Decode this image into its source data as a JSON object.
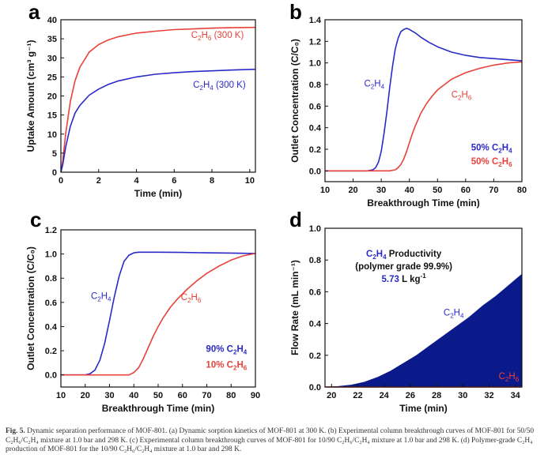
{
  "chart_data": [
    {
      "id": "a",
      "panel_label": "a",
      "type": "line",
      "xlabel": "Time (min)",
      "ylabel": "Uptake Amount (cm³ g⁻¹)",
      "xlim": [
        0,
        10.3
      ],
      "ylim": [
        0,
        40
      ],
      "xticks": [
        0,
        2,
        4,
        6,
        8,
        10
      ],
      "yticks": [
        0,
        5,
        10,
        15,
        20,
        25,
        30,
        35,
        40
      ],
      "series": [
        {
          "name": "C2H6 (300 K)",
          "color": "#e8413a",
          "x": [
            0,
            0.1,
            0.25,
            0.5,
            0.75,
            1.0,
            1.5,
            2,
            2.5,
            3,
            4,
            5,
            6,
            7,
            8,
            9,
            10.3
          ],
          "y": [
            0,
            3,
            10,
            18.5,
            24,
            27.5,
            31.5,
            33.5,
            34.7,
            35.5,
            36.5,
            37.0,
            37.4,
            37.6,
            37.8,
            37.9,
            38.0
          ]
        },
        {
          "name": "C2H4 (300 K)",
          "color": "#2a2ac8",
          "x": [
            0,
            0.1,
            0.25,
            0.5,
            0.75,
            1.0,
            1.5,
            2,
            2.5,
            3,
            4,
            5,
            6,
            7,
            8,
            9,
            10.3
          ],
          "y": [
            0,
            2,
            6.5,
            12,
            15.5,
            17.5,
            20.2,
            21.8,
            23.0,
            23.9,
            25.0,
            25.7,
            26.1,
            26.4,
            26.6,
            26.8,
            27.0
          ]
        }
      ],
      "labels": [
        {
          "series": 0,
          "main": "C",
          "sub": "2",
          "mid": "H",
          "sub2": "6",
          "tail": " (300 K)",
          "at": [
            6.9,
            35.2
          ],
          "anchor": "start"
        },
        {
          "series": 1,
          "main": "C",
          "sub": "2",
          "mid": "H",
          "sub2": "4",
          "tail": " (300 K)",
          "at": [
            7.0,
            22.2
          ],
          "anchor": "start"
        }
      ]
    },
    {
      "id": "b",
      "panel_label": "b",
      "type": "line",
      "xlabel": "Breakthrough Time (min)",
      "ylabel": "Outlet Concentration (C/C₀)",
      "xlim": [
        10,
        80
      ],
      "ylim": [
        -0.1,
        1.4
      ],
      "xticks": [
        10,
        20,
        30,
        40,
        50,
        60,
        70,
        80
      ],
      "yticks": [
        0.0,
        0.2,
        0.4,
        0.6,
        0.8,
        1.0,
        1.2,
        1.4
      ],
      "series": [
        {
          "name": "C2H4",
          "color": "#2a2ac8",
          "x": [
            10,
            25,
            27,
            28,
            29,
            30,
            31,
            32,
            33,
            34,
            35,
            36,
            37,
            38,
            39,
            40,
            42,
            44,
            47,
            50,
            55,
            60,
            65,
            70,
            75,
            80
          ],
          "y": [
            0,
            0,
            0.01,
            0.03,
            0.08,
            0.18,
            0.35,
            0.55,
            0.77,
            0.97,
            1.13,
            1.23,
            1.29,
            1.31,
            1.32,
            1.31,
            1.28,
            1.24,
            1.19,
            1.15,
            1.1,
            1.07,
            1.05,
            1.04,
            1.03,
            1.02
          ]
        },
        {
          "name": "C2H6",
          "color": "#e8413a",
          "x": [
            10,
            33,
            35,
            36,
            37,
            38,
            39,
            40,
            41,
            42,
            44,
            46,
            48,
            50,
            55,
            60,
            65,
            70,
            75,
            80
          ],
          "y": [
            0,
            0,
            0.01,
            0.03,
            0.06,
            0.11,
            0.18,
            0.26,
            0.34,
            0.41,
            0.53,
            0.62,
            0.69,
            0.75,
            0.85,
            0.91,
            0.95,
            0.98,
            1.0,
            1.01
          ]
        }
      ],
      "labels": [
        {
          "series": 0,
          "main": "C",
          "sub": "2",
          "mid": "H",
          "sub2": "4",
          "tail": "",
          "at": [
            27.5,
            0.78
          ],
          "anchor": "middle"
        },
        {
          "series": 1,
          "main": "C",
          "sub": "2",
          "mid": "H",
          "sub2": "6",
          "tail": "",
          "at": [
            58.5,
            0.68
          ],
          "anchor": "middle"
        },
        {
          "series": 0,
          "main": "50% C",
          "sub": "2",
          "mid": "H",
          "sub2": "4",
          "tail": "",
          "at": [
            76.5,
            0.19
          ],
          "anchor": "end"
        },
        {
          "series": 1,
          "main": "50% C",
          "sub": "2",
          "mid": "H",
          "sub2": "6",
          "tail": "",
          "at": [
            76.5,
            0.06
          ],
          "anchor": "end"
        }
      ]
    },
    {
      "id": "c",
      "panel_label": "c",
      "type": "line",
      "xlabel": "Breakthrough Time (min)",
      "ylabel": "Outlet Concentration (C/C₀)",
      "xlim": [
        10,
        90
      ],
      "ylim": [
        -0.1,
        1.2
      ],
      "xticks": [
        10,
        20,
        30,
        40,
        50,
        60,
        70,
        80,
        90
      ],
      "yticks": [
        0.0,
        0.2,
        0.4,
        0.6,
        0.8,
        1.0,
        1.2
      ],
      "series": [
        {
          "name": "C2H4",
          "color": "#2a2ac8",
          "x": [
            10,
            20,
            22,
            24,
            26,
            28,
            30,
            32,
            34,
            36,
            38,
            40,
            42,
            45,
            50,
            60,
            70,
            80,
            90
          ],
          "y": [
            0,
            0,
            0.01,
            0.04,
            0.12,
            0.26,
            0.45,
            0.65,
            0.82,
            0.94,
            0.99,
            1.01,
            1.015,
            1.015,
            1.015,
            1.013,
            1.01,
            1.008,
            1.005
          ]
        },
        {
          "name": "C2H6",
          "color": "#e8413a",
          "x": [
            10,
            38,
            40,
            42,
            44,
            46,
            48,
            50,
            52,
            55,
            58,
            62,
            66,
            70,
            75,
            80,
            85,
            90
          ],
          "y": [
            0,
            0,
            0.02,
            0.06,
            0.14,
            0.23,
            0.32,
            0.4,
            0.47,
            0.56,
            0.63,
            0.71,
            0.78,
            0.84,
            0.9,
            0.95,
            0.985,
            1.005
          ]
        }
      ],
      "labels": [
        {
          "series": 0,
          "main": "C",
          "sub": "2",
          "mid": "H",
          "sub2": "4",
          "tail": "",
          "at": [
            26.5,
            0.63
          ],
          "anchor": "middle"
        },
        {
          "series": 1,
          "main": "C",
          "sub": "2",
          "mid": "H",
          "sub2": "6",
          "tail": "",
          "at": [
            63.5,
            0.62
          ],
          "anchor": "middle"
        },
        {
          "series": 0,
          "main": "90% C",
          "sub": "2",
          "mid": "H",
          "sub2": "4",
          "tail": "",
          "at": [
            86.5,
            0.19
          ],
          "anchor": "end"
        },
        {
          "series": 1,
          "main": "10% C",
          "sub": "2",
          "mid": "H",
          "sub2": "6",
          "tail": "",
          "at": [
            86.5,
            0.06
          ],
          "anchor": "end"
        }
      ]
    },
    {
      "id": "d",
      "panel_label": "d",
      "type": "area",
      "xlabel": "Time (min)",
      "ylabel": "Flow Rate (mL min⁻¹)",
      "xlim": [
        19.5,
        34.5
      ],
      "ylim": [
        0,
        1.0
      ],
      "xticks": [
        20,
        22,
        24,
        26,
        28,
        30,
        32,
        34
      ],
      "yticks": [
        0.0,
        0.2,
        0.4,
        0.6,
        0.8,
        1.0
      ],
      "series": [
        {
          "name": "C2H4",
          "color": "#0a1a8a",
          "x": [
            19.5,
            20.5,
            21.5,
            22.5,
            23.5,
            24.5,
            25.5,
            26.5,
            27.5,
            28.5,
            29.5,
            30.5,
            31.5,
            32.5,
            33.5,
            34.5
          ],
          "y": [
            0,
            0.003,
            0.012,
            0.03,
            0.06,
            0.1,
            0.15,
            0.2,
            0.26,
            0.32,
            0.38,
            0.44,
            0.51,
            0.57,
            0.64,
            0.71
          ]
        },
        {
          "name": "C2H6",
          "color": "#e8413a",
          "x": [
            19.5,
            34.5
          ],
          "y": [
            0,
            0
          ]
        }
      ],
      "labels": [
        {
          "series": 0,
          "main": "C",
          "sub": "2",
          "mid": "H",
          "sub2": "4",
          "tail": "",
          "at": [
            29.3,
            0.45
          ],
          "anchor": "middle"
        },
        {
          "series": 1,
          "main": "C",
          "sub": "2",
          "mid": "H",
          "sub2": "6",
          "tail": "",
          "at": [
            33.5,
            0.05
          ],
          "anchor": "middle"
        }
      ],
      "annotation": {
        "line1_main": "C",
        "line1_sub": "2",
        "line1_mid": "H",
        "line1_sub2": "4",
        "line1_tail": " Productivity",
        "line2": "(polymer grade 99.9%)",
        "line3_value": "5.73",
        "line3_unit": " L kg",
        "line3_sup": "-1",
        "at": [
          25.5,
          0.82
        ]
      }
    }
  ],
  "caption": {
    "label": "Fig. 5.",
    "text": "Dynamic separation performance of MOF-801. (a) Dynamic sorption kinetics of MOF-801 at 300 K. (b) Experimental column breakthrough curves of MOF-801 for 50/50 C₂H₆/C₂H₄ mixture at 1.0 bar and 298 K. (c) Experimental column breakthrough curves of MOF-801 for 10/90 C₂H₆/C₂H₄ mixture at 1.0 bar and 298 K. (d) Polymer-grade C₂H₄ production of MOF-801 for the 10/90 C₂H₆/C₂H₄ mixture at 1.0 bar and 298 K."
  },
  "colors": {
    "axis": "#111111",
    "c2h4": "#2a2ac8",
    "c2h6": "#e8413a",
    "fill": "#0a1a8a"
  }
}
